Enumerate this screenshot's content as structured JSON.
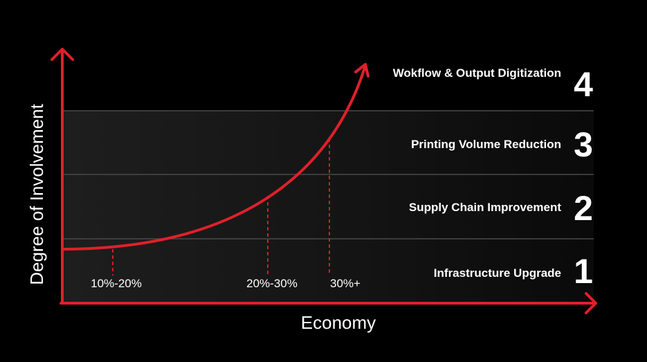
{
  "axes": {
    "y_label": "Degree of Involvement",
    "x_label": "Economy",
    "color": "#e0202a"
  },
  "levels": [
    {
      "number": "1",
      "label": "Infrastructure Upgrade"
    },
    {
      "number": "2",
      "label": "Supply Chain Improvement"
    },
    {
      "number": "3",
      "label": "Printing Volume Reduction"
    },
    {
      "number": "4",
      "label": "Wokflow & Output Digitization"
    }
  ],
  "markers": [
    {
      "label": "10%-20%"
    },
    {
      "label": "20%-30%"
    },
    {
      "label": "30%+"
    }
  ],
  "colors": {
    "background": "#000000",
    "band": "#1c1c1c",
    "divider": "#4a4a4a",
    "curve": "#e0202a",
    "text": "#ffffff"
  }
}
